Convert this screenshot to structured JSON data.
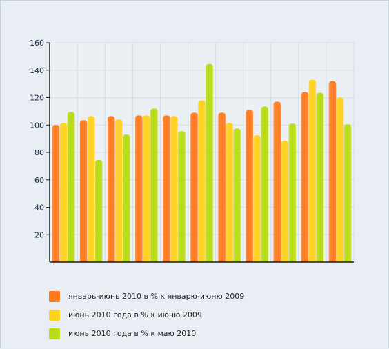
{
  "chart_data": {
    "type": "bar",
    "categories": [
      "",
      "",
      "",
      "",
      "",
      "",
      "",
      "",
      "",
      "",
      ""
    ],
    "ylim": [
      0,
      160
    ],
    "yticks": [
      20,
      40,
      60,
      80,
      100,
      120,
      140,
      160
    ],
    "grid": true,
    "legend_position": "bottom",
    "series": [
      {
        "name": "январь-июнь 2010 в % к январю-июню 2009",
        "color": "#ff7a1f",
        "values": [
          100,
          103.5,
          106.5,
          107,
          107,
          109,
          109,
          111,
          117,
          124,
          132
        ]
      },
      {
        "name": "июнь 2010 года в % к июню 2009",
        "color": "#ffd21f",
        "values": [
          101.5,
          106.5,
          104,
          107,
          106.5,
          118,
          101.5,
          92.5,
          88.5,
          133,
          120
        ]
      },
      {
        "name": "июнь 2010 года в % к  маю 2010",
        "color": "#b9dc14",
        "values": [
          109.5,
          74.5,
          93,
          112,
          95.5,
          144.5,
          97.5,
          113.5,
          101,
          123.5,
          100.5
        ]
      }
    ]
  }
}
